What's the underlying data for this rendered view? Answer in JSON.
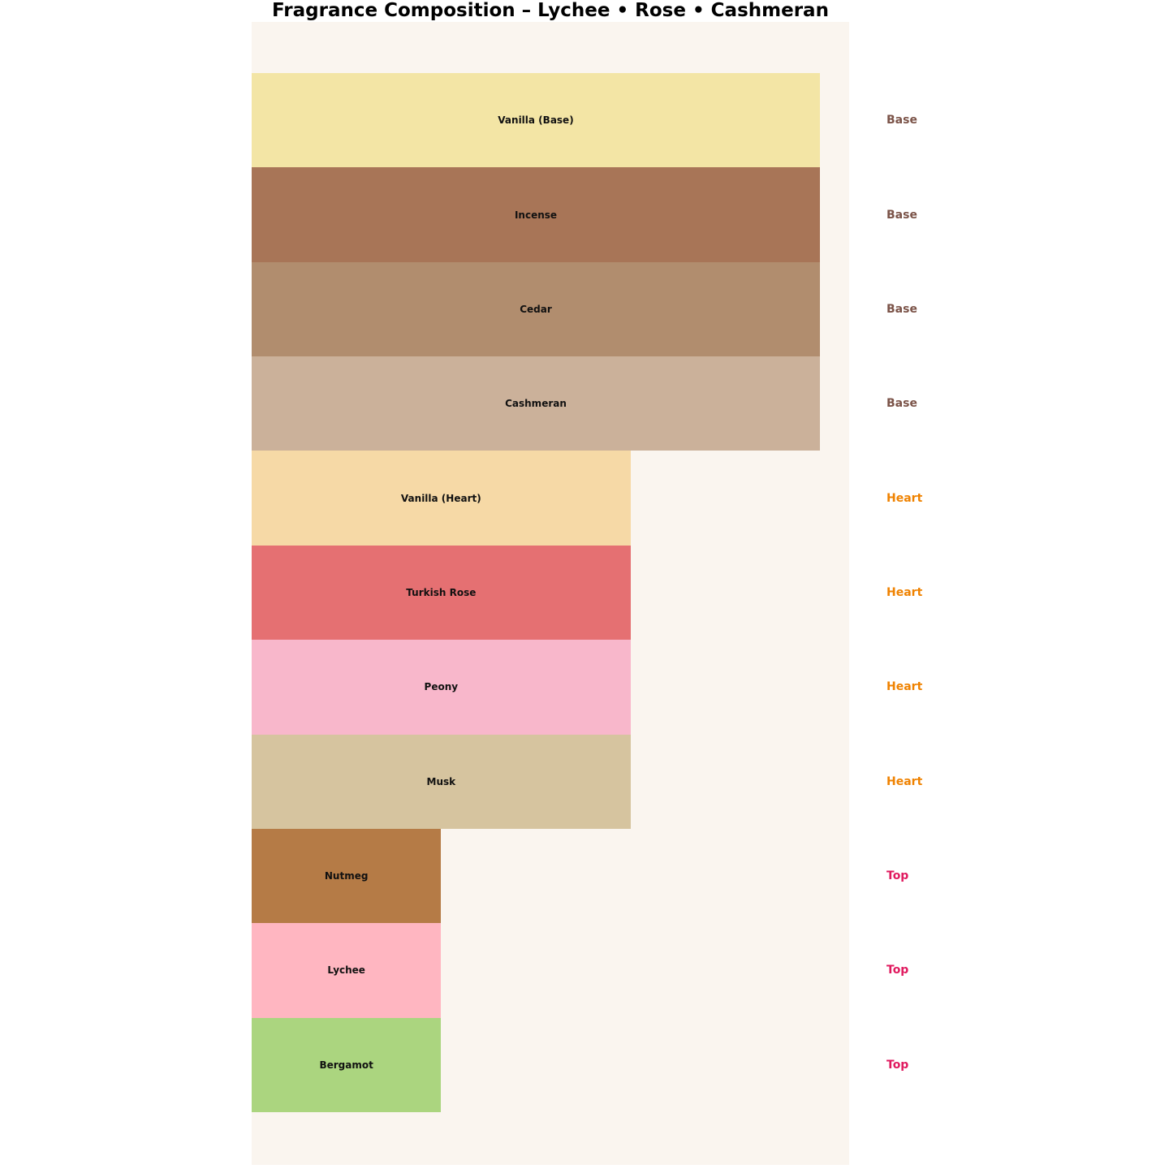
{
  "title": "Fragrance Composition – Lychee • Rose • Cashmeran",
  "panel_background": "#FAF5EF",
  "tier_colors": {
    "Base": "#7B5348",
    "Heart": "#EF8200",
    "Top": "#E01A5F"
  },
  "chart_data": {
    "type": "bar",
    "orientation": "horizontal",
    "title": "Fragrance Composition – Lychee • Rose • Cashmeran",
    "xlabel": "",
    "ylabel": "",
    "xlim": [
      0,
      3
    ],
    "grid": false,
    "legend": "none",
    "categories": [
      "Vanilla (Base)",
      "Incense",
      "Cedar",
      "Cashmeran",
      "Vanilla (Heart)",
      "Turkish Rose",
      "Peony",
      "Musk",
      "Nutmeg",
      "Lychee",
      "Bergamot"
    ],
    "values": [
      3,
      3,
      3,
      3,
      2,
      2,
      2,
      2,
      1,
      1,
      1
    ],
    "rows": [
      {
        "label": "Vanilla (Base)",
        "tier": "Base",
        "value": 3,
        "color": "#F3E5A5"
      },
      {
        "label": "Incense",
        "tier": "Base",
        "value": 3,
        "color": "#A87557"
      },
      {
        "label": "Cedar",
        "tier": "Base",
        "value": 3,
        "color": "#B18D6E"
      },
      {
        "label": "Cashmeran",
        "tier": "Base",
        "value": 3,
        "color": "#CBB19A"
      },
      {
        "label": "Vanilla (Heart)",
        "tier": "Heart",
        "value": 2,
        "color": "#F6D9A6"
      },
      {
        "label": "Turkish Rose",
        "tier": "Heart",
        "value": 2,
        "color": "#E57072"
      },
      {
        "label": "Peony",
        "tier": "Heart",
        "value": 2,
        "color": "#F8B7CB"
      },
      {
        "label": "Musk",
        "tier": "Heart",
        "value": 2,
        "color": "#D6C49F"
      },
      {
        "label": "Nutmeg",
        "tier": "Top",
        "value": 1,
        "color": "#B57B46"
      },
      {
        "label": "Lychee",
        "tier": "Top",
        "value": 1,
        "color": "#FFB6C1"
      },
      {
        "label": "Bergamot",
        "tier": "Top",
        "value": 1,
        "color": "#ABD57F"
      }
    ]
  }
}
